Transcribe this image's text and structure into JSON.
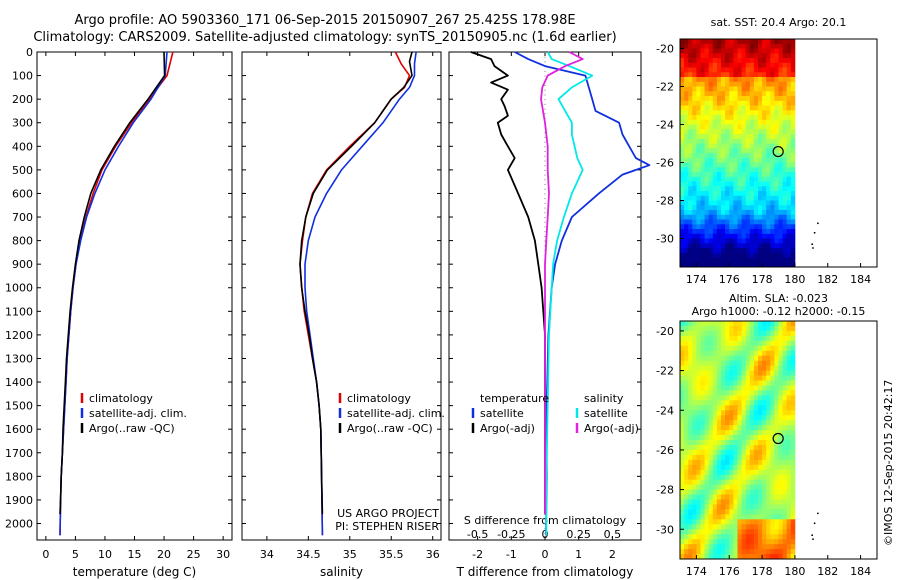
{
  "header": {
    "line1": "Argo profile: AO 5903360_171 06-Sep-2015 20150907_267 25.425S 178.98E",
    "line2": "Climatology: CARS2009. Satellite-adjusted climatology: synTS_20150905.nc (1.6d earlier)"
  },
  "footer_stamp": "©IMOS 12-Sep-2015 20:42:17",
  "colors": {
    "climatology": "#e00000",
    "satellite": "#1030e0",
    "argo": "#000000",
    "sal_satellite": "#00e0e0",
    "sal_argo": "#e020e0"
  },
  "depth_ticks": [
    "0",
    "100",
    "200",
    "300",
    "400",
    "500",
    "600",
    "700",
    "800",
    "900",
    "1000",
    "1100",
    "1200",
    "1300",
    "1400",
    "1500",
    "1600",
    "1700",
    "1800",
    "1900",
    "2000"
  ],
  "chart_data": [
    {
      "id": "temperature",
      "type": "line",
      "xlabel": "temperature (deg C)",
      "ylim": [
        2070,
        0
      ],
      "xlim": [
        -1.5,
        31.5
      ],
      "xticks": [
        0,
        5,
        10,
        15,
        20,
        25,
        30
      ],
      "xtick_labels": [
        "0",
        "5",
        "10",
        "15",
        "20",
        "25",
        "30"
      ],
      "legend": [
        "climatology",
        "satellite-adj. clim.",
        "Argo(..raw -QC)"
      ],
      "series": [
        {
          "name": "climatology",
          "color": "red",
          "points": [
            [
              0,
              21.5
            ],
            [
              100,
              20.5
            ],
            [
              200,
              17.5
            ],
            [
              300,
              14.5
            ],
            [
              400,
              11.8
            ],
            [
              500,
              9.5
            ],
            [
              600,
              8.0
            ],
            [
              700,
              6.8
            ],
            [
              800,
              5.8
            ],
            [
              900,
              5.1
            ],
            [
              1000,
              4.6
            ],
            [
              1100,
              4.2
            ],
            [
              1200,
              3.9
            ],
            [
              1300,
              3.6
            ],
            [
              1400,
              3.4
            ],
            [
              1500,
              3.2
            ],
            [
              1600,
              3.0
            ],
            [
              1700,
              2.8
            ],
            [
              1800,
              2.6
            ],
            [
              1900,
              2.5
            ],
            [
              2050,
              2.4
            ]
          ]
        },
        {
          "name": "satellite-adj. clim.",
          "color": "blue",
          "points": [
            [
              0,
              20.5
            ],
            [
              100,
              20.2
            ],
            [
              200,
              17.8
            ],
            [
              300,
              14.8
            ],
            [
              400,
              12.3
            ],
            [
              500,
              10.0
            ],
            [
              600,
              8.3
            ],
            [
              700,
              6.9
            ],
            [
              800,
              5.9
            ],
            [
              900,
              5.1
            ],
            [
              1000,
              4.6
            ],
            [
              1100,
              4.2
            ],
            [
              1200,
              3.9
            ],
            [
              1300,
              3.6
            ],
            [
              1400,
              3.4
            ],
            [
              1500,
              3.2
            ],
            [
              1600,
              3.0
            ],
            [
              1700,
              2.8
            ],
            [
              1800,
              2.6
            ],
            [
              1900,
              2.5
            ],
            [
              2050,
              2.4
            ]
          ]
        },
        {
          "name": "Argo(..raw -QC)",
          "color": "black",
          "points": [
            [
              0,
              20.0
            ],
            [
              100,
              20.1
            ],
            [
              200,
              17.3
            ],
            [
              300,
              14.2
            ],
            [
              400,
              11.6
            ],
            [
              500,
              9.3
            ],
            [
              600,
              7.6
            ],
            [
              700,
              6.5
            ],
            [
              800,
              5.6
            ],
            [
              900,
              5.0
            ],
            [
              1000,
              4.5
            ],
            [
              1100,
              4.1
            ],
            [
              1200,
              3.8
            ],
            [
              1300,
              3.5
            ],
            [
              1400,
              3.3
            ],
            [
              1500,
              3.1
            ],
            [
              1600,
              2.9
            ],
            [
              1700,
              2.8
            ],
            [
              1800,
              2.6
            ],
            [
              1900,
              2.5
            ],
            [
              1960,
              2.4
            ]
          ]
        }
      ]
    },
    {
      "id": "salinity",
      "type": "line",
      "xlabel": "salinity",
      "ylim": [
        2070,
        0
      ],
      "xlim": [
        33.7,
        36.1
      ],
      "xticks": [
        34,
        34.5,
        35,
        35.5,
        36
      ],
      "xtick_labels": [
        "34",
        "34.5",
        "35",
        "35.5",
        "36"
      ],
      "legend": [
        "climatology",
        "satellite-adj. clim.",
        "Argo(..raw -QC)"
      ],
      "credit": [
        "US ARGO PROJECT",
        "PI: STEPHEN RISER"
      ],
      "series": [
        {
          "name": "climatology",
          "color": "red",
          "points": [
            [
              0,
              35.55
            ],
            [
              50,
              35.62
            ],
            [
              100,
              35.72
            ],
            [
              150,
              35.66
            ],
            [
              200,
              35.5
            ],
            [
              300,
              35.3
            ],
            [
              400,
              35.0
            ],
            [
              500,
              34.72
            ],
            [
              600,
              34.55
            ],
            [
              700,
              34.47
            ],
            [
              800,
              34.43
            ],
            [
              900,
              34.4
            ],
            [
              1000,
              34.42
            ],
            [
              1100,
              34.45
            ],
            [
              1200,
              34.5
            ],
            [
              1300,
              34.55
            ],
            [
              1400,
              34.6
            ],
            [
              1500,
              34.63
            ],
            [
              1600,
              34.65
            ],
            [
              1800,
              34.66
            ],
            [
              2050,
              34.67
            ]
          ]
        },
        {
          "name": "satellite-adj. clim.",
          "color": "blue",
          "points": [
            [
              0,
              35.8
            ],
            [
              50,
              35.78
            ],
            [
              100,
              35.78
            ],
            [
              150,
              35.72
            ],
            [
              200,
              35.6
            ],
            [
              300,
              35.4
            ],
            [
              400,
              35.15
            ],
            [
              500,
              34.9
            ],
            [
              600,
              34.72
            ],
            [
              700,
              34.58
            ],
            [
              800,
              34.5
            ],
            [
              900,
              34.46
            ],
            [
              1000,
              34.46
            ],
            [
              1100,
              34.48
            ],
            [
              1200,
              34.52
            ],
            [
              1300,
              34.56
            ],
            [
              1400,
              34.6
            ],
            [
              1500,
              34.63
            ],
            [
              1600,
              34.65
            ],
            [
              1800,
              34.66
            ],
            [
              2050,
              34.67
            ]
          ]
        },
        {
          "name": "Argo(..raw -QC)",
          "color": "black",
          "points": [
            [
              0,
              35.75
            ],
            [
              40,
              35.72
            ],
            [
              100,
              35.75
            ],
            [
              150,
              35.65
            ],
            [
              200,
              35.5
            ],
            [
              300,
              35.3
            ],
            [
              400,
              35.02
            ],
            [
              500,
              34.73
            ],
            [
              600,
              34.56
            ],
            [
              700,
              34.47
            ],
            [
              800,
              34.42
            ],
            [
              900,
              34.4
            ],
            [
              1000,
              34.42
            ],
            [
              1100,
              34.46
            ],
            [
              1200,
              34.51
            ],
            [
              1300,
              34.55
            ],
            [
              1400,
              34.6
            ],
            [
              1500,
              34.63
            ],
            [
              1600,
              34.65
            ],
            [
              1800,
              34.66
            ],
            [
              1960,
              34.67
            ]
          ]
        }
      ]
    },
    {
      "id": "differences",
      "type": "line",
      "xlabel": "T difference from climatology",
      "top_label": "S difference from climatology",
      "ylim": [
        2070,
        0
      ],
      "xlim": [
        -2.85,
        2.85
      ],
      "xticks": [
        -2,
        -1,
        0,
        1,
        2
      ],
      "xtick_labels": [
        "-2",
        "-1",
        "0",
        "1",
        "2"
      ],
      "sticks": [
        -0.5,
        -0.25,
        0,
        0.25,
        0.5
      ],
      "stick_labels": [
        "-0.5",
        "-0.25",
        "0",
        "0.25",
        "0.5"
      ],
      "s_scale": 4,
      "legend_temperature": [
        "temperature",
        "satellite",
        "Argo(-adj)"
      ],
      "legend_salinity": [
        "salinity",
        "satellite",
        "Argo(-adj)"
      ],
      "series": [
        {
          "name": "T satellite",
          "color": "blue",
          "points": [
            [
              0,
              -0.9
            ],
            [
              30,
              -0.5
            ],
            [
              60,
              0.0
            ],
            [
              100,
              1.2
            ],
            [
              150,
              1.3
            ],
            [
              200,
              1.4
            ],
            [
              250,
              1.5
            ],
            [
              300,
              2.2
            ],
            [
              350,
              2.3
            ],
            [
              400,
              2.5
            ],
            [
              450,
              2.7
            ],
            [
              480,
              3.1
            ],
            [
              520,
              2.3
            ],
            [
              600,
              1.6
            ],
            [
              700,
              0.8
            ],
            [
              800,
              0.5
            ],
            [
              900,
              0.3
            ],
            [
              1000,
              0.2
            ],
            [
              1200,
              0.1
            ],
            [
              1500,
              0.05
            ],
            [
              1800,
              0.05
            ],
            [
              2050,
              0.03
            ]
          ]
        },
        {
          "name": "T Argo(-adj)",
          "color": "black",
          "points": [
            [
              0,
              -2.2
            ],
            [
              30,
              -1.6
            ],
            [
              60,
              -1.5
            ],
            [
              100,
              -1.1
            ],
            [
              130,
              -1.6
            ],
            [
              160,
              -1.1
            ],
            [
              200,
              -1.3
            ],
            [
              230,
              -1.2
            ],
            [
              270,
              -1.1
            ],
            [
              300,
              -1.4
            ],
            [
              350,
              -1.3
            ],
            [
              400,
              -1.1
            ],
            [
              450,
              -0.9
            ],
            [
              500,
              -1.1
            ],
            [
              600,
              -0.8
            ],
            [
              700,
              -0.5
            ],
            [
              800,
              -0.3
            ],
            [
              900,
              -0.2
            ],
            [
              1000,
              -0.1
            ],
            [
              1200,
              0.0
            ],
            [
              1500,
              0.0
            ],
            [
              1800,
              0.0
            ],
            [
              1960,
              0.0
            ]
          ]
        },
        {
          "name": "S satellite",
          "color": "cyan",
          "points": [
            [
              0,
              0.02
            ],
            [
              30,
              0.05
            ],
            [
              60,
              0.18
            ],
            [
              100,
              0.35
            ],
            [
              150,
              0.2
            ],
            [
              200,
              0.1
            ],
            [
              250,
              0.15
            ],
            [
              300,
              0.2
            ],
            [
              350,
              0.2
            ],
            [
              400,
              0.22
            ],
            [
              450,
              0.24
            ],
            [
              500,
              0.28
            ],
            [
              550,
              0.24
            ],
            [
              600,
              0.2
            ],
            [
              700,
              0.14
            ],
            [
              800,
              0.09
            ],
            [
              900,
              0.06
            ],
            [
              1000,
              0.05
            ],
            [
              1200,
              0.03
            ],
            [
              1500,
              0.02
            ],
            [
              1800,
              0.01
            ],
            [
              2050,
              0.01
            ]
          ]
        },
        {
          "name": "S Argo(-adj)",
          "color": "magenta",
          "points": [
            [
              0,
              0.18
            ],
            [
              30,
              0.28
            ],
            [
              60,
              0.15
            ],
            [
              100,
              0.02
            ],
            [
              150,
              -0.02
            ],
            [
              200,
              -0.03
            ],
            [
              300,
              0.0
            ],
            [
              400,
              0.02
            ],
            [
              500,
              0.02
            ],
            [
              600,
              0.03
            ],
            [
              700,
              0.02
            ],
            [
              800,
              0.01
            ],
            [
              900,
              0.0
            ],
            [
              1000,
              0.0
            ],
            [
              1200,
              0.0
            ],
            [
              1500,
              0.0
            ],
            [
              1800,
              0.0
            ],
            [
              1960,
              0.0
            ]
          ]
        }
      ]
    },
    {
      "id": "sst_map",
      "type": "heatmap",
      "title": "sat. SST: 20.4  Argo: 20.1",
      "xlim": [
        173,
        185
      ],
      "ylim": [
        -31.5,
        -19.5
      ],
      "xticks": [
        174,
        176,
        178,
        180,
        182,
        184
      ],
      "xtick_labels": [
        "174",
        "176",
        "178",
        "180",
        "182",
        "184"
      ],
      "yticks": [
        -20,
        -22,
        -24,
        -26,
        -28,
        -30
      ],
      "ytick_labels": [
        "-20",
        "-22",
        "-24",
        "-26",
        "-28",
        "-30"
      ],
      "data_lon_max": 180,
      "colormap": "jet",
      "argo_position": {
        "lon": 178.98,
        "lat": -25.425
      }
    },
    {
      "id": "sla_map",
      "type": "heatmap",
      "title_lines": [
        "Altim. SLA: -0.023",
        "Argo h1000: -0.12  h2000: -0.15"
      ],
      "xlim": [
        173,
        185
      ],
      "ylim": [
        -31.5,
        -19.5
      ],
      "xticks": [
        174,
        176,
        178,
        180,
        182,
        184
      ],
      "xtick_labels": [
        "174",
        "176",
        "178",
        "180",
        "182",
        "184"
      ],
      "yticks": [
        -20,
        -22,
        -24,
        -26,
        -28,
        -30
      ],
      "ytick_labels": [
        "-20",
        "-22",
        "-24",
        "-26",
        "-28",
        "-30"
      ],
      "data_lon_max": 180,
      "colormap": "jet",
      "argo_position": {
        "lon": 178.98,
        "lat": -25.425
      }
    }
  ]
}
